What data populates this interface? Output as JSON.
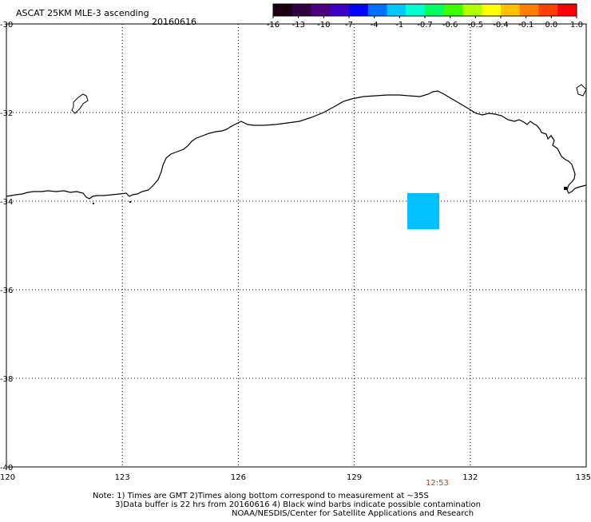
{
  "header": {
    "product": "ASCAT 25KM MLE-3 ascending",
    "date": "20160616"
  },
  "colorbar": {
    "colors": [
      "#1a0010",
      "#300040",
      "#4a0080",
      "#3a00c8",
      "#0000ff",
      "#0070ff",
      "#00c8ff",
      "#00ffd0",
      "#00ff60",
      "#40ff00",
      "#b0ff00",
      "#ffff00",
      "#ffc000",
      "#ff8000",
      "#ff4000",
      "#ff0000"
    ],
    "tick_labels": [
      "-16",
      "-13",
      "-10",
      "-7",
      "-4",
      "-1",
      "-0.7",
      "-0.6",
      "-0.5",
      "-0.4",
      "-0.1",
      "0.0",
      "1.0"
    ]
  },
  "axes": {
    "lon_labels": [
      "120",
      "123",
      "126",
      "129",
      "132",
      "135"
    ],
    "lat_labels": [
      "-30",
      "-32",
      "-34",
      "-36",
      "-38",
      "-40"
    ]
  },
  "data_patch": {
    "color": "#00c0ff"
  },
  "pass_time": "12:53",
  "notes": [
    "Note: 1) Times are GMT 2)Times along bottom correspond to measurement at ~35S",
    "3)Data buffer is 22 hrs from 20160616 4) Black wind barbs indicate possible contamination",
    "NOAA/NESDIS/Center for Satellite Applications and Research"
  ]
}
